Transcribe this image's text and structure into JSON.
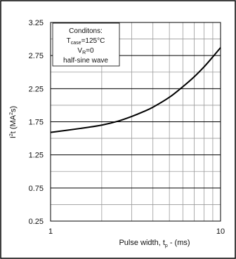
{
  "chart_data": {
    "type": "line",
    "x_scale": "log",
    "xlim": [
      1,
      10
    ],
    "ylim": [
      0.25,
      3.25
    ],
    "x_ticks": [
      "1",
      "10"
    ],
    "y_ticks": [
      "0.25",
      "0.75",
      "1.25",
      "1.75",
      "2.25",
      "2.75",
      "3.25"
    ],
    "xlabel": {
      "main": "Pulse width, t",
      "sub": "p",
      "tail": " -  (ms)"
    },
    "ylabel": {
      "pre": "I",
      "sup": "2",
      "mid": "t (MA",
      "sup2": "2",
      "tail": "s)"
    },
    "grid": true,
    "annotation": {
      "line1": "Conditons:",
      "line2": {
        "main": "T",
        "sub": "case",
        "tail": "=125°C"
      },
      "line3": {
        "main": "V",
        "sub": "R",
        "tail": "=0"
      },
      "line4": "half-sine wave"
    },
    "series": [
      {
        "color": "#000000",
        "x": [
          1.0,
          1.5,
          2.0,
          2.5,
          3.0,
          3.5,
          4.0,
          5.0,
          6.0,
          7.0,
          8.0,
          9.0,
          10.0
        ],
        "y": [
          1.59,
          1.65,
          1.7,
          1.76,
          1.83,
          1.9,
          1.97,
          2.12,
          2.28,
          2.43,
          2.58,
          2.73,
          2.87
        ]
      }
    ]
  }
}
